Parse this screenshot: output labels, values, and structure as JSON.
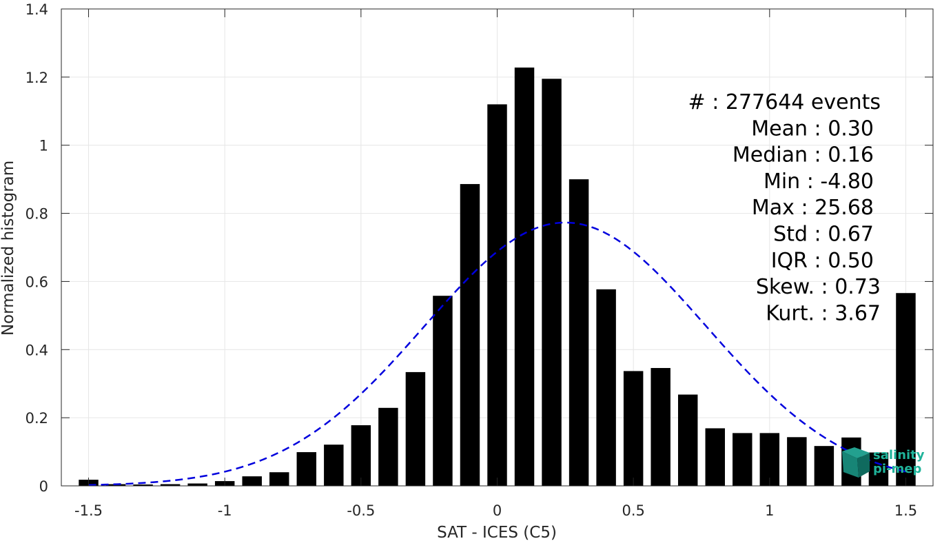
{
  "chart_data": {
    "type": "bar",
    "xlabel": "SAT - ICES (C5)",
    "ylabel": "Normalized histogram",
    "xlim": [
      -1.6,
      1.6
    ],
    "ylim": [
      0,
      1.4
    ],
    "grid": true,
    "x_ticks": [
      -1.5,
      -1,
      -0.5,
      0,
      0.5,
      1,
      1.5
    ],
    "x_tick_labels": [
      "-1.5",
      "-1",
      "-0.5",
      "0",
      "0.5",
      "1",
      "1.5"
    ],
    "y_ticks": [
      0,
      0.2,
      0.4,
      0.6,
      0.8,
      1,
      1.2,
      1.4
    ],
    "y_tick_labels": [
      "0",
      "0.2",
      "0.4",
      "0.6",
      "0.8",
      "1",
      "1.2",
      "1.4"
    ],
    "bar_color": "#000000",
    "x": [
      -1.5,
      -1.4,
      -1.3,
      -1.2,
      -1.1,
      -1.0,
      -0.9,
      -0.8,
      -0.7,
      -0.6,
      -0.5,
      -0.4,
      -0.3,
      -0.2,
      -0.1,
      0.0,
      0.1,
      0.2,
      0.3,
      0.4,
      0.5,
      0.6,
      0.7,
      0.8,
      0.9,
      1.0,
      1.1,
      1.2,
      1.3,
      1.4,
      1.5
    ],
    "values": [
      0.018,
      0.005,
      0.004,
      0.005,
      0.007,
      0.014,
      0.028,
      0.04,
      0.099,
      0.121,
      0.178,
      0.229,
      0.334,
      0.558,
      0.886,
      1.12,
      1.228,
      1.195,
      0.9,
      0.577,
      0.337,
      0.346,
      0.268,
      0.169,
      0.155,
      0.155,
      0.143,
      0.117,
      0.142,
      0.098,
      0.566
    ],
    "fit_curve": {
      "style": "dashed",
      "color": "#0000dd",
      "mean": 0.25,
      "std": 0.517,
      "peak": 0.773,
      "x_range": [
        -1.5,
        1.5
      ]
    },
    "stats": [
      {
        "label": "#  : 277644 events"
      },
      {
        "label": "Mean : 0.30"
      },
      {
        "label": "Median : 0.16"
      },
      {
        "label": "Min : -4.80"
      },
      {
        "label": "Max : 25.68"
      },
      {
        "label": "Std : 0.67"
      },
      {
        "label": "IQR : 0.50"
      },
      {
        "label": "Skew. : 0.73"
      },
      {
        "label": "Kurt. : 3.67"
      }
    ]
  },
  "logo": {
    "line1": "salinity",
    "line2": "pi-mep",
    "color_text": "#1fb39a",
    "color_cube": "#1a8a7e"
  }
}
